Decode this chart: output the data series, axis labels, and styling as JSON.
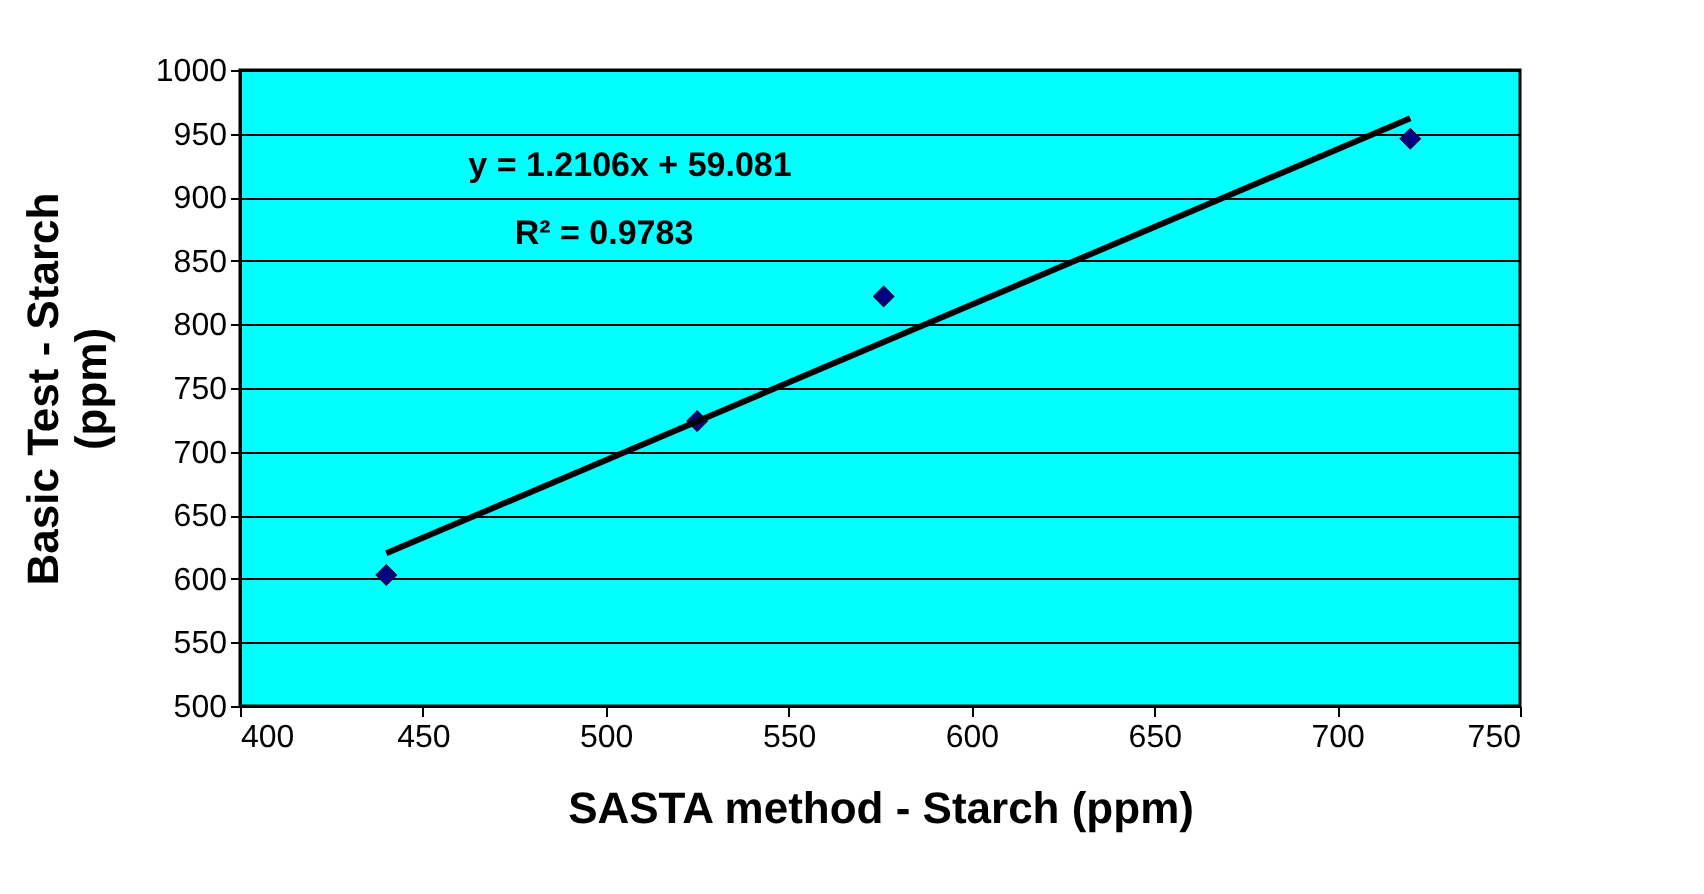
{
  "chart_data": {
    "type": "scatter",
    "xlabel": "SASTA method - Starch (ppm)",
    "ylabel": "Basic Test - Starch (ppm)",
    "xlim": [
      400,
      750
    ],
    "xticks": [
      400,
      450,
      500,
      550,
      600,
      650,
      700,
      750
    ],
    "ylim": [
      500,
      1000
    ],
    "yticks": [
      500,
      550,
      600,
      650,
      700,
      750,
      800,
      850,
      900,
      950,
      1000
    ],
    "grid": "y",
    "legend": false,
    "marker": "diamond",
    "series": [
      {
        "type": "scatter",
        "color": "#000080",
        "x": [
          440,
          525,
          576,
          720
        ],
        "values": [
          603,
          724,
          822,
          946
        ]
      },
      {
        "type": "line",
        "color": "#000000",
        "x": [
          440,
          720
        ],
        "values": [
          620,
          962
        ],
        "line_style": "solid",
        "marker": "none"
      }
    ],
    "annotations": [
      "y = 1.2106x + 59.081",
      "R² = 0.9783"
    ]
  }
}
